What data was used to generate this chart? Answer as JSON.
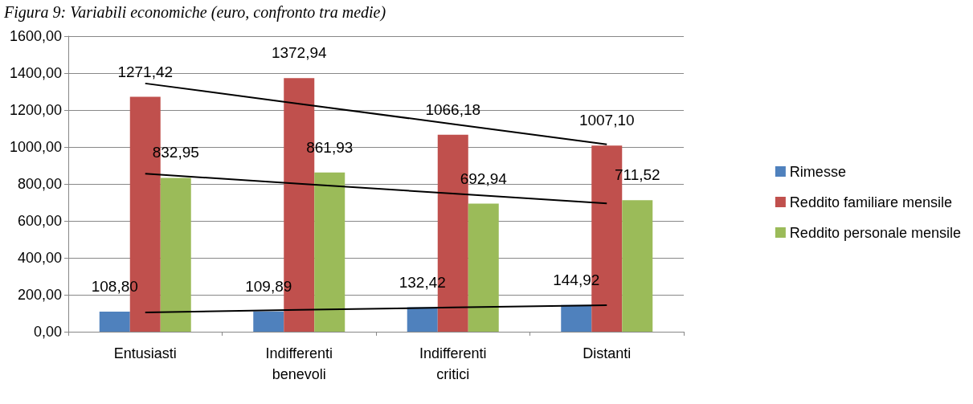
{
  "chart_data": {
    "type": "bar",
    "title": "Figura 9: Variabili economiche (euro, confronto tra medie)",
    "categories": [
      "Entusiasti",
      "Indifferenti\nbenevoli",
      "Indifferenti\ncritici",
      "Distanti"
    ],
    "series": [
      {
        "name": "Rimesse",
        "color": "#4f81bd",
        "values": [
          108.8,
          109.89,
          132.42,
          144.92
        ],
        "value_labels": [
          "108,80",
          "109,89",
          "132,42",
          "144,92"
        ]
      },
      {
        "name": "Reddito familiare mensile",
        "color": "#c0504d",
        "values": [
          1271.42,
          1372.94,
          1066.18,
          1007.1
        ],
        "value_labels": [
          "1271,42",
          "1372,94",
          "1066,18",
          "1007,10"
        ]
      },
      {
        "name": "Reddito personale mensile",
        "color": "#9bbb59",
        "values": [
          832.95,
          861.93,
          692.94,
          711.52
        ],
        "value_labels": [
          "832,95",
          "861,93",
          "692,94",
          "711,52"
        ]
      },
      {
        "type": "line",
        "color": "#000000",
        "marker": "none",
        "values": [
          104,
          118,
          131,
          144
        ]
      },
      {
        "type": "line",
        "color": "#000000",
        "marker": "none",
        "values": [
          1344,
          1234,
          1124,
          1014
        ]
      },
      {
        "type": "line",
        "color": "#000000",
        "marker": "none",
        "values": [
          855,
          801,
          748,
          695
        ]
      }
    ],
    "ylim": [
      0,
      1600
    ],
    "yticks": [
      {
        "value": 0,
        "label": "0,00"
      },
      {
        "value": 200,
        "label": "200,00"
      },
      {
        "value": 400,
        "label": "400,00"
      },
      {
        "value": 600,
        "label": "600,00"
      },
      {
        "value": 800,
        "label": "800,00"
      },
      {
        "value": 1000,
        "label": "1000,00"
      },
      {
        "value": 1200,
        "label": "1200,00"
      },
      {
        "value": 1400,
        "label": "1400,00"
      },
      {
        "value": 1600,
        "label": "1600,00"
      }
    ],
    "grid": "y",
    "legend": "right"
  }
}
